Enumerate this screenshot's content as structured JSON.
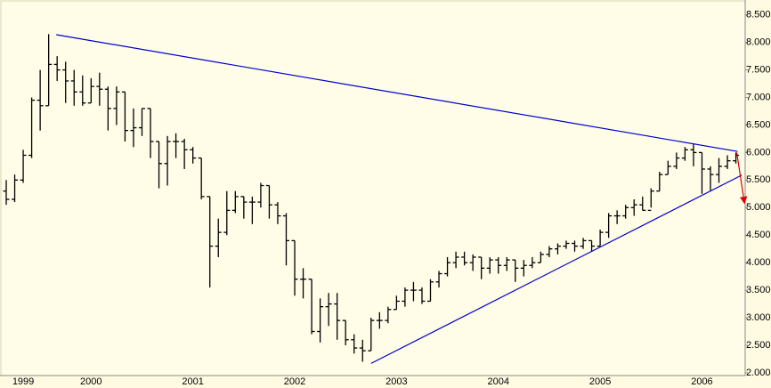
{
  "chart_data": {
    "type": "ohlc",
    "categories": [
      null,
      null,
      "1999",
      null,
      null,
      null,
      null,
      null,
      null,
      null,
      "2000",
      null,
      null,
      null,
      null,
      null,
      null,
      null,
      null,
      null,
      null,
      null,
      "2001",
      null,
      null,
      null,
      null,
      null,
      null,
      null,
      null,
      null,
      null,
      null,
      "2002",
      null,
      null,
      null,
      null,
      null,
      null,
      null,
      null,
      null,
      null,
      null,
      "2003",
      null,
      null,
      null,
      null,
      null,
      null,
      null,
      null,
      null,
      null,
      null,
      "2004",
      null,
      null,
      null,
      null,
      null,
      null,
      null,
      null,
      null,
      null,
      null,
      "2005",
      null,
      null,
      null,
      null,
      null,
      null,
      null,
      null,
      null,
      null,
      null,
      "2006",
      null,
      null,
      null,
      null
    ],
    "open": [
      5.3,
      5.15,
      5.5,
      5.95,
      6.95,
      6.85,
      7.6,
      7.5,
      7.3,
      7.1,
      6.9,
      7.2,
      7.15,
      6.8,
      7.1,
      6.4,
      6.45,
      6.8,
      6.2,
      5.8,
      6.2,
      6.2,
      6.05,
      5.9,
      5.2,
      4.3,
      4.55,
      4.95,
      5.2,
      5.1,
      5.1,
      5.4,
      5.05,
      4.85,
      4.4,
      3.7,
      3.7,
      2.75,
      3.2,
      3.25,
      2.95,
      2.6,
      2.45,
      2.4,
      2.95,
      2.95,
      3.15,
      3.3,
      3.5,
      3.5,
      3.3,
      3.65,
      3.8,
      4.0,
      4.1,
      4.0,
      4.1,
      3.9,
      4.05,
      3.95,
      4.05,
      3.9,
      3.95,
      4.0,
      4.15,
      4.25,
      4.3,
      4.35,
      4.3,
      4.4,
      4.3,
      4.55,
      4.85,
      4.85,
      5.0,
      5.05,
      4.95,
      5.3,
      5.6,
      5.75,
      5.9,
      6.05,
      6.0,
      5.7,
      5.6,
      5.75,
      5.85
    ],
    "high": [
      5.5,
      5.6,
      6.05,
      7.0,
      7.5,
      8.15,
      7.75,
      7.65,
      7.5,
      7.4,
      7.35,
      7.45,
      7.2,
      7.2,
      7.1,
      6.8,
      6.8,
      6.8,
      6.2,
      6.3,
      6.35,
      6.25,
      6.1,
      5.9,
      5.2,
      4.8,
      5.3,
      5.3,
      5.2,
      5.2,
      5.45,
      5.4,
      5.1,
      4.9,
      4.4,
      3.9,
      3.7,
      3.35,
      3.45,
      3.45,
      2.95,
      2.7,
      2.6,
      3.0,
      3.1,
      3.2,
      3.4,
      3.55,
      3.65,
      3.55,
      3.7,
      3.85,
      4.1,
      4.2,
      4.2,
      4.15,
      4.1,
      4.1,
      4.1,
      4.1,
      4.05,
      4.05,
      4.1,
      4.2,
      4.3,
      4.35,
      4.4,
      4.4,
      4.45,
      4.4,
      4.6,
      4.9,
      4.95,
      5.05,
      5.15,
      5.2,
      5.35,
      5.65,
      5.85,
      6.0,
      6.1,
      6.15,
      6.0,
      5.75,
      5.9,
      5.95,
      6.0
    ],
    "low": [
      5.05,
      5.1,
      5.45,
      5.9,
      6.4,
      6.85,
      7.3,
      6.9,
      6.85,
      6.85,
      6.9,
      6.85,
      6.4,
      6.5,
      6.2,
      6.1,
      6.3,
      5.9,
      5.35,
      5.4,
      5.9,
      5.7,
      5.8,
      5.15,
      3.55,
      4.1,
      4.5,
      4.9,
      4.8,
      4.7,
      5.0,
      4.8,
      4.7,
      3.95,
      3.4,
      3.35,
      2.7,
      2.55,
      2.85,
      2.6,
      2.5,
      2.35,
      2.2,
      2.4,
      2.8,
      2.9,
      3.15,
      3.2,
      3.3,
      3.25,
      3.3,
      3.55,
      3.75,
      3.9,
      3.95,
      3.85,
      3.7,
      3.8,
      3.8,
      3.85,
      3.65,
      3.75,
      3.9,
      4.0,
      4.1,
      4.15,
      4.25,
      4.2,
      4.25,
      4.2,
      4.3,
      4.45,
      4.7,
      4.8,
      4.85,
      4.95,
      5.0,
      5.3,
      5.6,
      5.7,
      5.85,
      5.75,
      5.25,
      5.3,
      5.45,
      5.7,
      5.8
    ],
    "close": [
      5.15,
      5.5,
      5.95,
      6.95,
      6.85,
      7.6,
      7.5,
      7.3,
      7.1,
      6.9,
      7.2,
      7.15,
      6.8,
      7.1,
      6.4,
      6.45,
      6.8,
      6.2,
      5.8,
      6.2,
      6.2,
      6.05,
      5.9,
      5.2,
      4.3,
      4.55,
      4.95,
      5.2,
      5.1,
      5.1,
      5.4,
      5.05,
      4.85,
      4.4,
      3.7,
      3.7,
      2.75,
      3.2,
      3.25,
      2.95,
      2.6,
      2.45,
      2.4,
      2.95,
      2.95,
      3.15,
      3.3,
      3.5,
      3.5,
      3.3,
      3.65,
      3.8,
      4.0,
      4.1,
      4.0,
      4.1,
      3.9,
      4.05,
      3.95,
      4.05,
      3.9,
      3.95,
      4.0,
      4.15,
      4.25,
      4.3,
      4.35,
      4.3,
      4.4,
      4.3,
      4.55,
      4.85,
      4.85,
      5.0,
      5.05,
      4.95,
      5.3,
      5.6,
      5.75,
      5.9,
      6.05,
      6.0,
      5.7,
      5.6,
      5.75,
      5.85,
      5.95
    ],
    "color": "#000000",
    "trendlines": [
      {
        "x": [
          5.9,
          86.2
        ],
        "y": [
          8.14,
          6.02
        ],
        "color": "#0000cc"
      },
      {
        "x": [
          43.0,
          86.7
        ],
        "y": [
          2.17,
          5.59
        ],
        "color": "#0000cc"
      },
      {
        "x": [
          86.1,
          87.0
        ],
        "y": [
          6.0,
          5.09
        ],
        "color": "#dd0000",
        "arrow": true
      }
    ],
    "ylim": [
      1.95,
      8.77
    ],
    "yticks": [
      {
        "value": 2,
        "label": "2.000"
      },
      {
        "value": 2.5,
        "label": "2.500"
      },
      {
        "value": 3,
        "label": "3.000"
      },
      {
        "value": 3.5,
        "label": "3.500"
      },
      {
        "value": 4,
        "label": "4.000"
      },
      {
        "value": 4.5,
        "label": "4.500"
      },
      {
        "value": 5,
        "label": "5.000"
      },
      {
        "value": 5.5,
        "label": "5.500"
      },
      {
        "value": 6,
        "label": "6.000"
      },
      {
        "value": 6.5,
        "label": "6.500"
      },
      {
        "value": 7,
        "label": "7.000"
      },
      {
        "value": 7.5,
        "label": "7.500"
      },
      {
        "value": 8,
        "label": "8.000"
      },
      {
        "value": 8.5,
        "label": "8.500"
      }
    ]
  }
}
